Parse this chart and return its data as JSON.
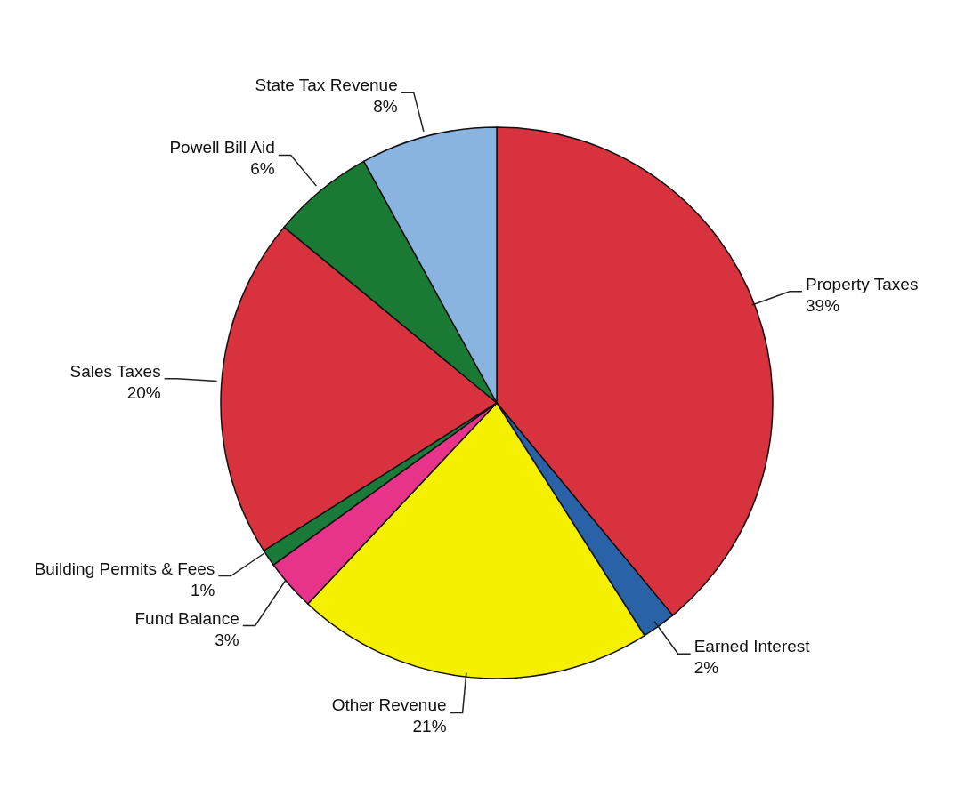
{
  "chart_data": {
    "type": "pie",
    "categories": [
      "Property Taxes",
      "Earned Interest",
      "Other Revenue",
      "Fund Balance",
      "Building Permits & Fees",
      "Sales Taxes",
      "Powell Bill Aid",
      "State Tax Revenue"
    ],
    "values": [
      39,
      2,
      21,
      3,
      1,
      20,
      6,
      8
    ],
    "value_labels": [
      "39%",
      "2%",
      "21%",
      "3%",
      "1%",
      "20%",
      "6%",
      "8%"
    ],
    "colors": [
      "#d9323f",
      "#2a62a8",
      "#f5ef00",
      "#e8338a",
      "#1a7a3a",
      "#d9323f",
      "#1a7a34",
      "#8ab4e0"
    ],
    "legend": false
  }
}
